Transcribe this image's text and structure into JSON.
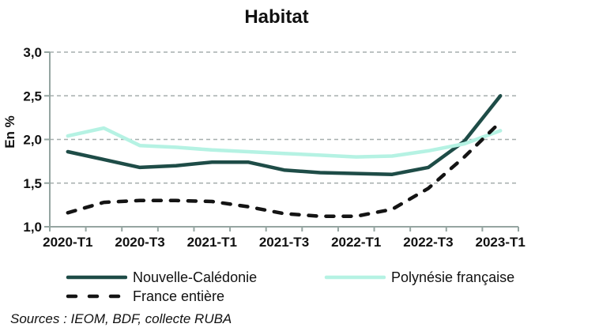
{
  "chart_data": {
    "type": "line",
    "title": "Habitat",
    "ylabel": "En %",
    "ylim": [
      1.0,
      3.0
    ],
    "ytick_step": 0.5,
    "ytick_labels_top_to_bottom": [
      "3,0",
      "2,5",
      "2,0",
      "1,5",
      "1,0"
    ],
    "grid": "horizontal dashed gridlines at 1.5, 2.0, 2.5, 3.0",
    "legend_position": "bottom-left, two rows",
    "categories": [
      "2020-T1",
      "2020-T2",
      "2020-T3",
      "2020-T4",
      "2021-T1",
      "2021-T2",
      "2021-T3",
      "2021-T4",
      "2022-T1",
      "2022-T2",
      "2022-T3",
      "2022-T4",
      "2023-T1"
    ],
    "xtick_labels_shown": [
      "2020-T1",
      "2020-T3",
      "2021-T1",
      "2021-T3",
      "2022-T1",
      "2022-T3",
      "2023-T1"
    ],
    "series": [
      {
        "name": "Nouvelle-Calédonie",
        "color": "#1e4c47",
        "style": "solid",
        "values": [
          1.86,
          1.77,
          1.68,
          1.7,
          1.74,
          1.74,
          1.65,
          1.62,
          1.61,
          1.6,
          1.68,
          1.98,
          2.5
        ]
      },
      {
        "name": "Polynésie française",
        "color": "#b5f2e3",
        "style": "solid",
        "values": [
          2.04,
          2.13,
          1.93,
          1.91,
          1.88,
          1.86,
          1.84,
          1.82,
          1.8,
          1.81,
          1.87,
          1.95,
          2.1
        ]
      },
      {
        "name": "France entière",
        "color": "#141414",
        "style": "dashed",
        "values": [
          1.16,
          1.28,
          1.3,
          1.3,
          1.29,
          1.23,
          1.15,
          1.12,
          1.12,
          1.2,
          1.44,
          1.8,
          2.2
        ]
      }
    ]
  },
  "source": "Sources : IEOM, BDF, collecte RUBA",
  "colors": {
    "background": "#ffffff",
    "grid": "#a6aead",
    "axis": "#95a5a1",
    "text": "#111111"
  }
}
